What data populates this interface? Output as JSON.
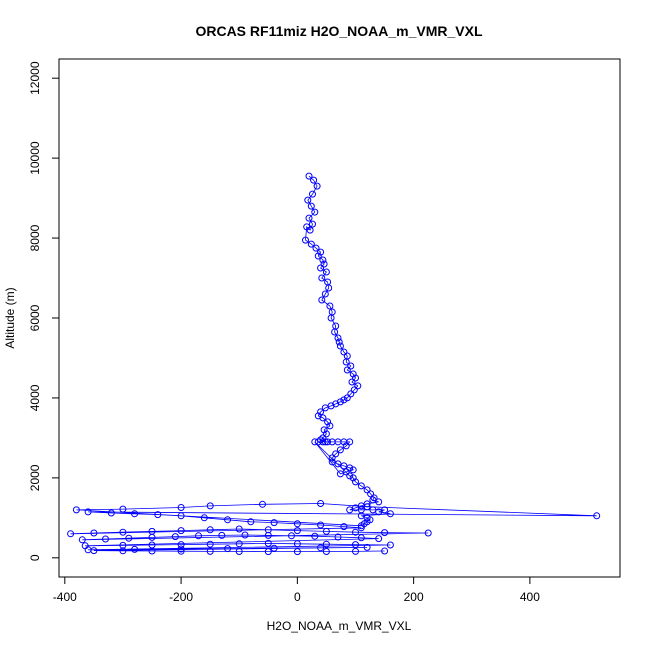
{
  "chart_data": {
    "type": "scatter",
    "title": "ORCAS RF11miz H2O_NOAA_m_VMR_VXL",
    "xlabel": "H2O_NOAA_m_VMR_VXL",
    "ylabel": "Altitude (m)",
    "xlim": [
      -410,
      555
    ],
    "ylim": [
      -480,
      12480
    ],
    "xticks": [
      -400,
      -200,
      0,
      200,
      400
    ],
    "yticks": [
      0,
      2000,
      4000,
      6000,
      8000,
      10000,
      12000
    ],
    "series_color": "#0000ff",
    "connected": true,
    "grid": false,
    "x": [
      20,
      28,
      34,
      26,
      18,
      24,
      30,
      20,
      26,
      22,
      16,
      14,
      24,
      32,
      40,
      36,
      44,
      46,
      40,
      50,
      42,
      52,
      54,
      48,
      42,
      56,
      60,
      58,
      66,
      64,
      70,
      72,
      74,
      80,
      86,
      84,
      92,
      86,
      96,
      100,
      94,
      104,
      98,
      92,
      86,
      80,
      74,
      66,
      58,
      48,
      40,
      36,
      44,
      52,
      56,
      46,
      50,
      44,
      40,
      48,
      36,
      44,
      52,
      60,
      70,
      80,
      90,
      84,
      74,
      66,
      60,
      60,
      70,
      80,
      90,
      96,
      84,
      74,
      30,
      90,
      96,
      100,
      110,
      120,
      126,
      132,
      130,
      140,
      120,
      110,
      100,
      90,
      110,
      130,
      150,
      140,
      160,
      110,
      120,
      125,
      120,
      115,
      110,
      -380,
      -300,
      -200,
      -150,
      -60,
      40,
      120,
      515,
      -360,
      -320,
      -280,
      -240,
      -200,
      -160,
      -120,
      -80,
      -40,
      0,
      40,
      80,
      110,
      -390,
      -350,
      -300,
      -250,
      -200,
      -150,
      -100,
      -50,
      0,
      50,
      100,
      150,
      225,
      -370,
      -330,
      -290,
      -250,
      -210,
      -170,
      -130,
      -90,
      -50,
      -10,
      30,
      70,
      110,
      140,
      -365,
      -300,
      -250,
      -200,
      -150,
      -100,
      -50,
      0,
      50,
      100,
      160,
      -360,
      -280,
      -200,
      -120,
      -40,
      40,
      120,
      -350,
      -300,
      -250,
      -200,
      -150,
      -100,
      -50,
      0,
      50,
      100,
      150
    ],
    "y": [
      9550,
      9450,
      9300,
      9100,
      8950,
      8800,
      8650,
      8500,
      8350,
      8200,
      8280,
      7950,
      7850,
      7750,
      7650,
      7550,
      7450,
      7350,
      7250,
      7150,
      7000,
      6900,
      6750,
      6600,
      6450,
      6300,
      6150,
      6000,
      5800,
      5650,
      5500,
      5400,
      5300,
      5150,
      5050,
      4900,
      4800,
      4700,
      4600,
      4500,
      4400,
      4300,
      4200,
      4100,
      4000,
      3950,
      3900,
      3850,
      3800,
      3750,
      3650,
      3550,
      3500,
      3400,
      3300,
      3200,
      3100,
      3000,
      2950,
      2900,
      2900,
      2900,
      2900,
      2900,
      2900,
      2900,
      2900,
      2800,
      2700,
      2600,
      2500,
      2400,
      2350,
      2300,
      2250,
      2200,
      2150,
      2100,
      2900,
      2050,
      2000,
      1900,
      1800,
      1700,
      1600,
      1500,
      1450,
      1400,
      1350,
      1300,
      1250,
      1200,
      1200,
      1200,
      1200,
      1150,
      1100,
      1050,
      1000,
      950,
      900,
      850,
      800,
      1200,
      1220,
      1260,
      1300,
      1340,
      1360,
      1280,
      1050,
      1150,
      1120,
      1100,
      1080,
      1050,
      1000,
      950,
      900,
      880,
      850,
      820,
      780,
      750,
      600,
      620,
      640,
      660,
      680,
      700,
      720,
      700,
      680,
      660,
      640,
      630,
      620,
      450,
      470,
      490,
      510,
      530,
      550,
      560,
      570,
      560,
      550,
      540,
      520,
      500,
      480,
      300,
      310,
      320,
      330,
      340,
      350,
      360,
      350,
      340,
      330,
      320,
      200,
      210,
      220,
      230,
      240,
      250,
      260,
      180,
      175,
      170,
      165,
      160,
      158,
      156,
      155,
      157,
      160,
      170
    ]
  }
}
